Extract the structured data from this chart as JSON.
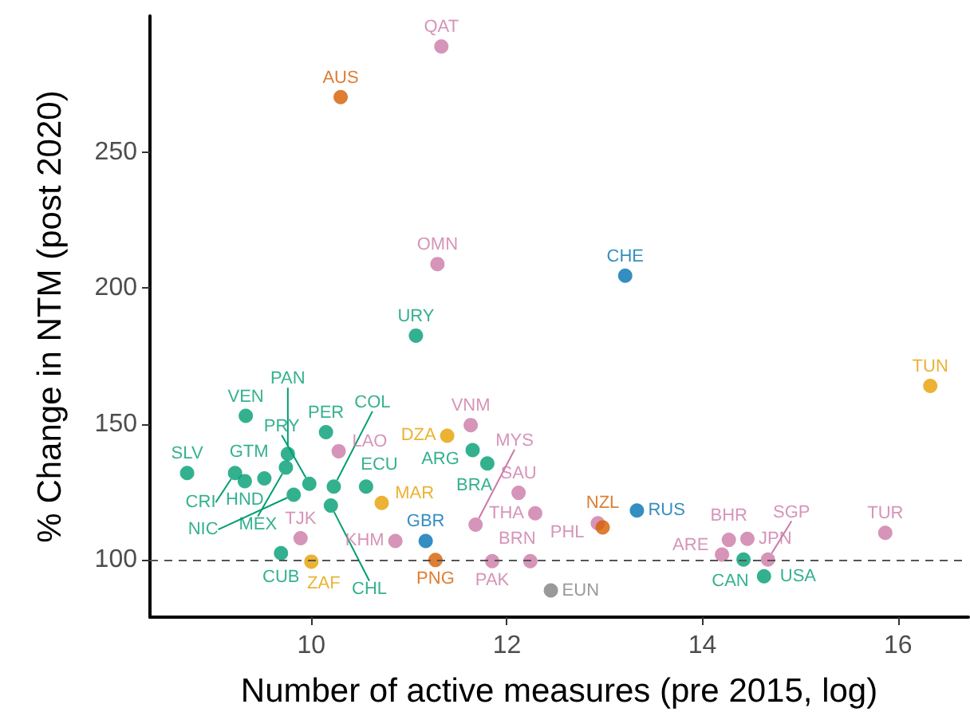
{
  "chart_data": {
    "type": "scatter",
    "xlabel": "Number of active measures (pre 2015, log)",
    "ylabel": "% Change in NTM (post 2020)",
    "xlim": [
      8.35,
      16.72
    ],
    "ylim": [
      79,
      300
    ],
    "xticks": [
      10,
      12,
      14,
      16
    ],
    "yticks": [
      100,
      150,
      200,
      250
    ],
    "grid": false,
    "marker": "circle",
    "series": [
      {
        "color": "#009E73",
        "x": [
          9.33,
          10.15,
          9.76,
          9.74,
          8.73,
          9.22,
          9.32,
          9.52,
          9.98,
          10.23,
          10.56,
          9.82,
          10.2,
          9.69,
          11.07,
          11.65,
          11.8,
          14.42,
          14.63
        ],
        "values": [
          153,
          147,
          139,
          134,
          132,
          132,
          129,
          130,
          128,
          127,
          127,
          124,
          120,
          102.5,
          182.5,
          140.4,
          135.5,
          100.2,
          94
        ]
      },
      {
        "color": "#CC79A7",
        "x": [
          11.33,
          11.29,
          10.28,
          9.89,
          10.86,
          11.63,
          11.68,
          12.12,
          12.29,
          12.93,
          11.85,
          12.24,
          14.27,
          14.46,
          14.2,
          14.67,
          15.87
        ],
        "values": [
          288.8,
          208.8,
          140,
          108,
          107,
          149.6,
          113,
          124.7,
          117.2,
          113.5,
          99.6,
          99.6,
          107.4,
          107.8,
          102,
          100.2,
          110
        ]
      },
      {
        "color": "#E69F00",
        "x": [
          11.39,
          10.72,
          10.0,
          16.33
        ],
        "values": [
          145.7,
          121,
          99.4,
          164
        ]
      },
      {
        "color": "#D55E00",
        "x": [
          10.3,
          11.27,
          12.98
        ],
        "values": [
          270.2,
          100,
          112
        ]
      },
      {
        "color": "#0072B2",
        "x": [
          13.21,
          11.17,
          13.33
        ],
        "values": [
          204.5,
          107,
          118.2
        ]
      },
      {
        "color": "#808080",
        "x": [
          12.45
        ],
        "values": [
          88.8
        ]
      }
    ],
    "ref_lines": [
      {
        "axis": "y",
        "value": 100,
        "line_style": "dashed",
        "color": "#555555"
      }
    ],
    "annotations": [
      {
        "text": "VEN",
        "x": 9.33,
        "y": 153
      },
      {
        "text": "PER",
        "x": 10.15,
        "y": 147
      },
      {
        "text": "PAN",
        "x": 9.76,
        "y": 139
      },
      {
        "text": "MEX",
        "x": 9.74,
        "y": 134
      },
      {
        "text": "SLV",
        "x": 8.73,
        "y": 132
      },
      {
        "text": "CRI",
        "x": 9.22,
        "y": 132
      },
      {
        "text": "HND",
        "x": 9.32,
        "y": 129
      },
      {
        "text": "GTM",
        "x": 9.52,
        "y": 130
      },
      {
        "text": "PRY",
        "x": 9.98,
        "y": 128
      },
      {
        "text": "COL",
        "x": 10.23,
        "y": 127
      },
      {
        "text": "ECU",
        "x": 10.56,
        "y": 127
      },
      {
        "text": "NIC",
        "x": 9.82,
        "y": 124
      },
      {
        "text": "CHL",
        "x": 10.2,
        "y": 120
      },
      {
        "text": "CUB",
        "x": 9.69,
        "y": 102.5
      },
      {
        "text": "URY",
        "x": 11.07,
        "y": 182.5
      },
      {
        "text": "ARG",
        "x": 11.65,
        "y": 140.4
      },
      {
        "text": "BRA",
        "x": 11.8,
        "y": 135.5
      },
      {
        "text": "CAN",
        "x": 14.42,
        "y": 100.2
      },
      {
        "text": "USA",
        "x": 14.63,
        "y": 94
      },
      {
        "text": "QAT",
        "x": 11.33,
        "y": 288.8
      },
      {
        "text": "OMN",
        "x": 11.29,
        "y": 208.8
      },
      {
        "text": "LAO",
        "x": 10.28,
        "y": 140
      },
      {
        "text": "TJK",
        "x": 9.89,
        "y": 108
      },
      {
        "text": "KHM",
        "x": 10.86,
        "y": 107
      },
      {
        "text": "VNM",
        "x": 11.63,
        "y": 149.6
      },
      {
        "text": "MYS",
        "x": 11.68,
        "y": 113
      },
      {
        "text": "SAU",
        "x": 12.12,
        "y": 124.7
      },
      {
        "text": "THA",
        "x": 12.29,
        "y": 117.2
      },
      {
        "text": "PHL",
        "x": 12.93,
        "y": 113.5
      },
      {
        "text": "PAK",
        "x": 11.85,
        "y": 99.6
      },
      {
        "text": "BRN",
        "x": 12.24,
        "y": 99.6
      },
      {
        "text": "BHR",
        "x": 14.27,
        "y": 107.4
      },
      {
        "text": "JPN",
        "x": 14.46,
        "y": 107.8
      },
      {
        "text": "ARE",
        "x": 14.2,
        "y": 102
      },
      {
        "text": "SGP",
        "x": 14.67,
        "y": 100.2
      },
      {
        "text": "TUR",
        "x": 15.87,
        "y": 110
      },
      {
        "text": "DZA",
        "x": 11.39,
        "y": 145.7
      },
      {
        "text": "MAR",
        "x": 10.72,
        "y": 121
      },
      {
        "text": "ZAF",
        "x": 10.0,
        "y": 99.4
      },
      {
        "text": "TUN",
        "x": 16.33,
        "y": 164
      },
      {
        "text": "AUS",
        "x": 10.3,
        "y": 270.2
      },
      {
        "text": "PNG",
        "x": 11.27,
        "y": 100
      },
      {
        "text": "NZL",
        "x": 12.98,
        "y": 112
      },
      {
        "text": "CHE",
        "x": 13.21,
        "y": 204.5
      },
      {
        "text": "GBR",
        "x": 11.17,
        "y": 107
      },
      {
        "text": "RUS",
        "x": 13.33,
        "y": 118.2
      },
      {
        "text": "EUN",
        "x": 12.45,
        "y": 88.8
      }
    ]
  }
}
